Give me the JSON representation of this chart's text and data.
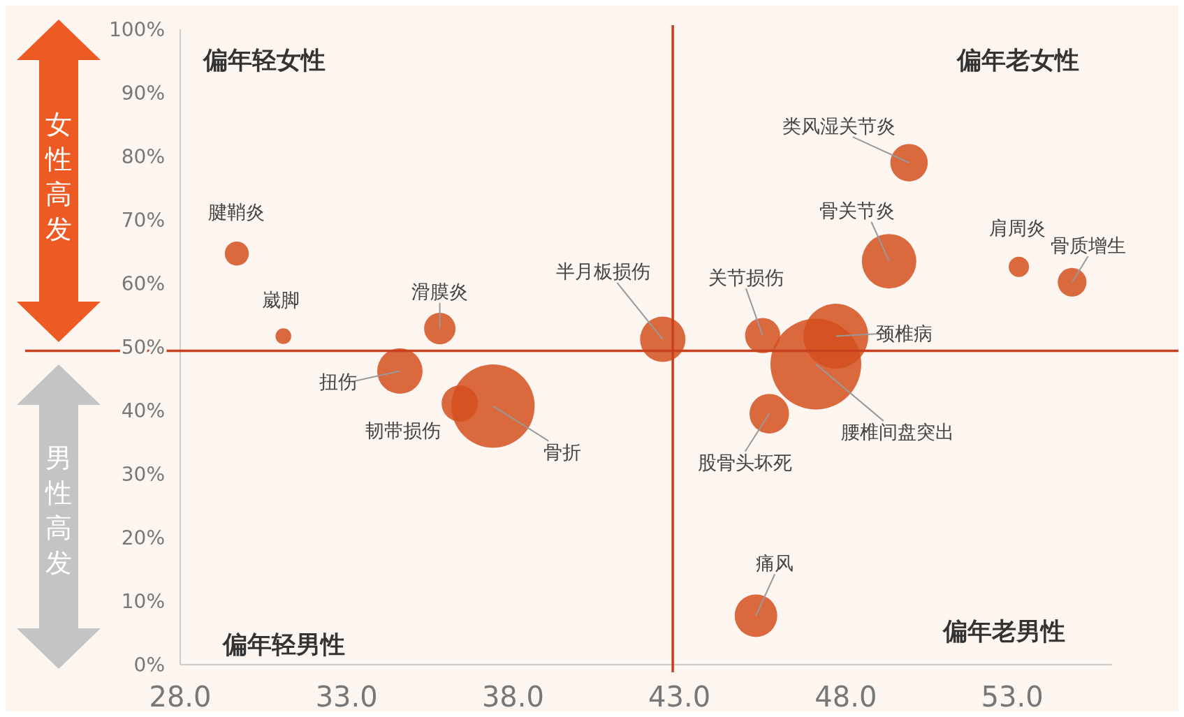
{
  "chart_data": {
    "type": "bubble",
    "xlim": [
      28,
      56
    ],
    "ylim": [
      0,
      100
    ],
    "xticks": [
      {
        "value": 28,
        "label": "28.0"
      },
      {
        "value": 33,
        "label": "33.0"
      },
      {
        "value": 38,
        "label": "38.0"
      },
      {
        "value": 43,
        "label": "43.0"
      },
      {
        "value": 48,
        "label": "48.0"
      },
      {
        "value": 53,
        "label": "53.0"
      }
    ],
    "yticks": [
      {
        "value": 0,
        "label": "0%"
      },
      {
        "value": 10,
        "label": "10%"
      },
      {
        "value": 20,
        "label": "20%"
      },
      {
        "value": 30,
        "label": "30%"
      },
      {
        "value": 40,
        "label": "40%"
      },
      {
        "value": 50,
        "label": "50%"
      },
      {
        "value": 60,
        "label": "60%"
      },
      {
        "value": 70,
        "label": "70%"
      },
      {
        "value": 80,
        "label": "80%"
      },
      {
        "value": 90,
        "label": "90%"
      },
      {
        "value": 100,
        "label": "100%"
      }
    ],
    "grid": false,
    "ref_lines": [
      {
        "axis": "x",
        "value": 42.8,
        "color": "#c8401c"
      },
      {
        "axis": "y",
        "value": 49.4,
        "color": "#c8401c"
      }
    ],
    "annotations": [
      "偏年轻女性",
      "偏年老女性",
      "偏年轻男性",
      "偏年老男性",
      "女性高发",
      "男性高发"
    ],
    "series": [
      {
        "name": "腱鞘炎",
        "color": "#d4501e",
        "x": [
          29.7
        ],
        "values": [
          64.7
        ],
        "sizes": [
          0.07
        ]
      },
      {
        "name": "崴脚",
        "color": "#d4501e",
        "x": [
          31.1
        ],
        "values": [
          51.7
        ],
        "sizes": [
          0.03
        ]
      },
      {
        "name": "滑膜炎",
        "color": "#d4501e",
        "x": [
          35.8
        ],
        "values": [
          52.9
        ],
        "sizes": [
          0.12
        ]
      },
      {
        "name": "扭伤",
        "color": "#d4501e",
        "x": [
          34.6
        ],
        "values": [
          46.2
        ],
        "sizes": [
          0.25
        ]
      },
      {
        "name": "韧带损伤",
        "color": "#d4501e",
        "x": [
          36.4
        ],
        "values": [
          41.1
        ],
        "sizes": [
          0.16
        ]
      },
      {
        "name": "骨折",
        "color": "#d4501e",
        "x": [
          37.4
        ],
        "values": [
          40.7
        ],
        "sizes": [
          0.84
        ]
      },
      {
        "name": "半月板损伤",
        "color": "#d4501e",
        "x": [
          42.5
        ],
        "values": [
          51.2
        ],
        "sizes": [
          0.25
        ]
      },
      {
        "name": "关节损伤",
        "color": "#d4501e",
        "x": [
          45.5
        ],
        "values": [
          51.8
        ],
        "sizes": [
          0.15
        ]
      },
      {
        "name": "颈椎病",
        "color": "#d4501e",
        "x": [
          47.7
        ],
        "values": [
          51.7
        ],
        "sizes": [
          0.51
        ]
      },
      {
        "name": "腰椎间盘突出",
        "color": "#d4501e",
        "x": [
          47.1
        ],
        "values": [
          47.3
        ],
        "sizes": [
          1
        ]
      },
      {
        "name": "股骨头坏死",
        "color": "#d4501e",
        "x": [
          45.7
        ],
        "values": [
          39.5
        ],
        "sizes": [
          0.19
        ]
      },
      {
        "name": "痛风",
        "color": "#d4501e",
        "x": [
          45.3
        ],
        "values": [
          7.7
        ],
        "sizes": [
          0.22
        ]
      },
      {
        "name": "类风湿关节炎",
        "color": "#d4501e",
        "x": [
          49.9
        ],
        "values": [
          79
        ],
        "sizes": [
          0.17
        ]
      },
      {
        "name": "骨关节炎",
        "color": "#d4501e",
        "x": [
          49.3
        ],
        "values": [
          63.5
        ],
        "sizes": [
          0.36
        ]
      },
      {
        "name": "肩周炎",
        "color": "#d4501e",
        "x": [
          53.2
        ],
        "values": [
          62.6
        ],
        "sizes": [
          0.05
        ]
      },
      {
        "name": "骨质增生",
        "color": "#d4501e",
        "x": [
          54.8
        ],
        "values": [
          60.2
        ],
        "sizes": [
          0.1
        ]
      }
    ]
  }
}
